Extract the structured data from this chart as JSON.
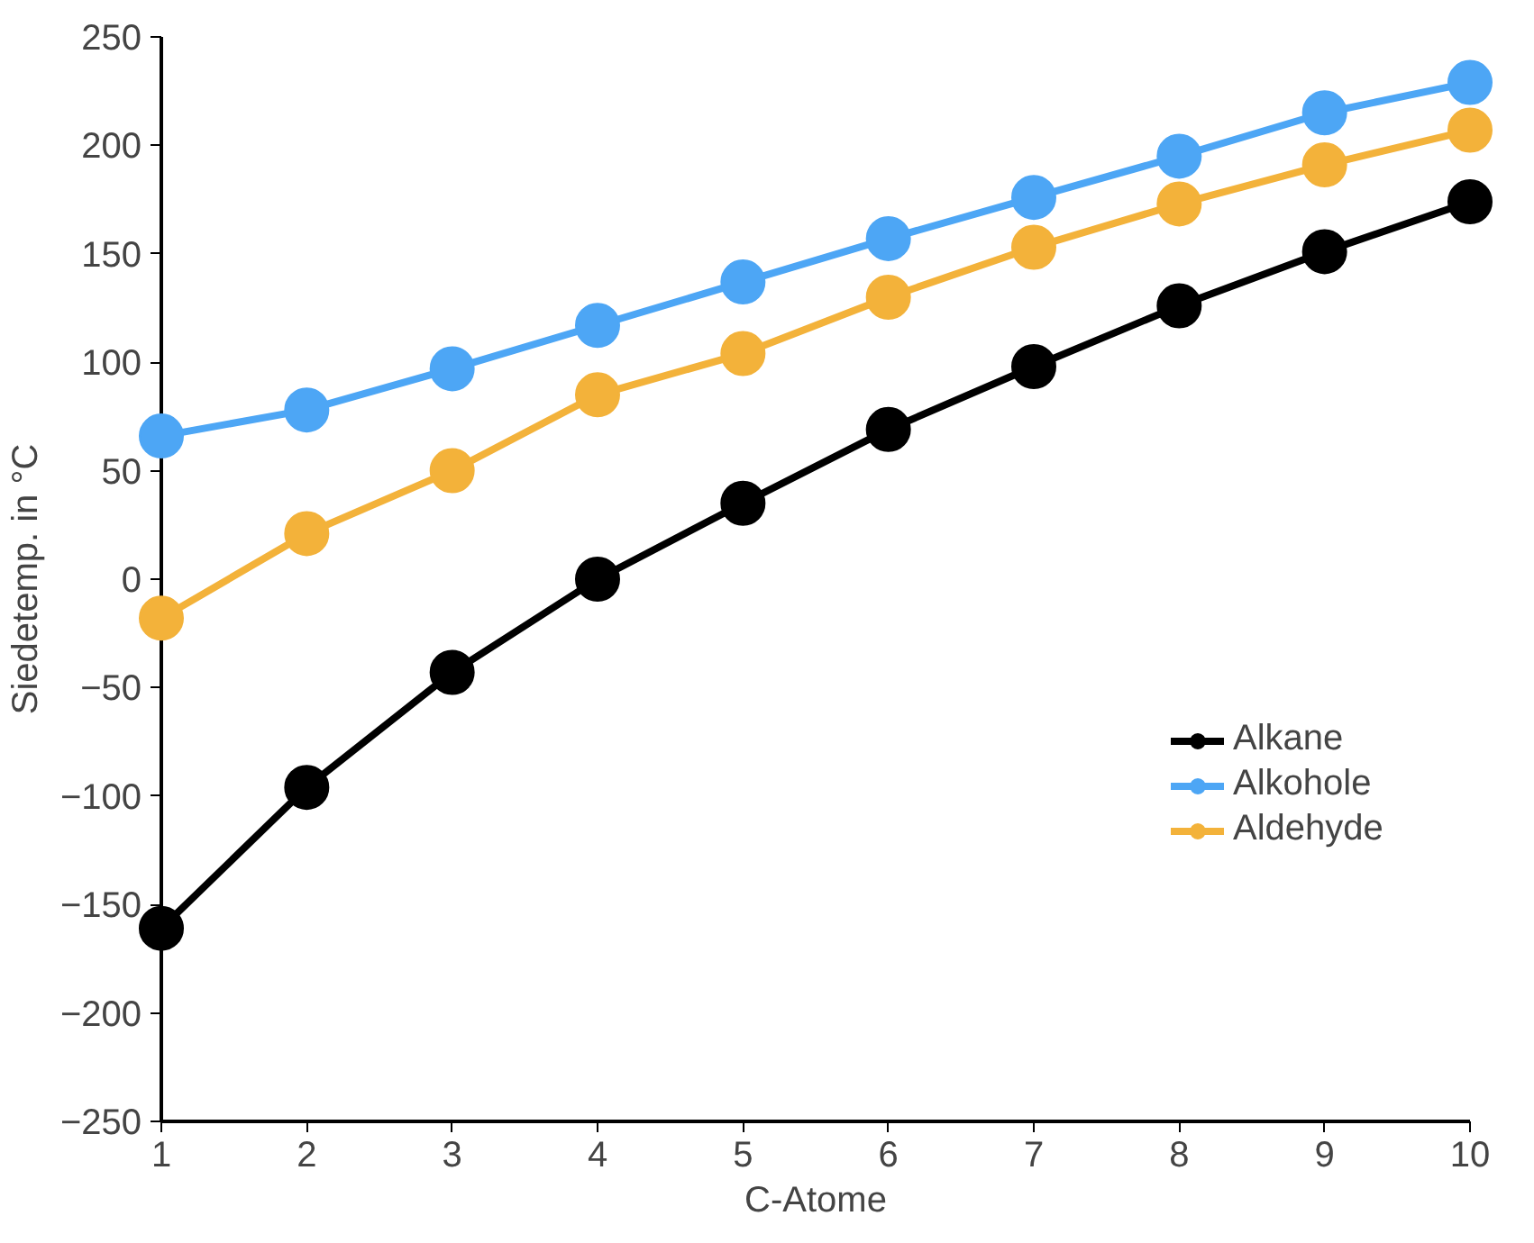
{
  "chart_data": {
    "type": "line",
    "xlabel": "C-Atome",
    "ylabel": "Siedetemp. in °C",
    "x": [
      1,
      2,
      3,
      4,
      5,
      6,
      7,
      8,
      9,
      10
    ],
    "series": [
      {
        "name": "Alkane",
        "color": "#000000",
        "values": [
          -161,
          -96,
          -43,
          0,
          35,
          69,
          98,
          126,
          151,
          174
        ]
      },
      {
        "name": "Alkohole",
        "color": "#4da6f5",
        "values": [
          66,
          78,
          97,
          117,
          137,
          157,
          176,
          195,
          215,
          229
        ]
      },
      {
        "name": "Aldehyde",
        "color": "#f3b23a",
        "values": [
          -18,
          21,
          50,
          85,
          104,
          130,
          153,
          173,
          191,
          207
        ]
      }
    ],
    "xlim": [
      1,
      10
    ],
    "xticks": [
      1,
      2,
      3,
      4,
      5,
      6,
      7,
      8,
      9,
      10
    ],
    "ylim": [
      -250,
      250
    ],
    "yticks": [
      -250,
      -200,
      -150,
      -100,
      -50,
      0,
      50,
      100,
      150,
      200,
      250
    ],
    "grid": false,
    "legend": "right",
    "marker": "circle",
    "line_style": "solid"
  }
}
